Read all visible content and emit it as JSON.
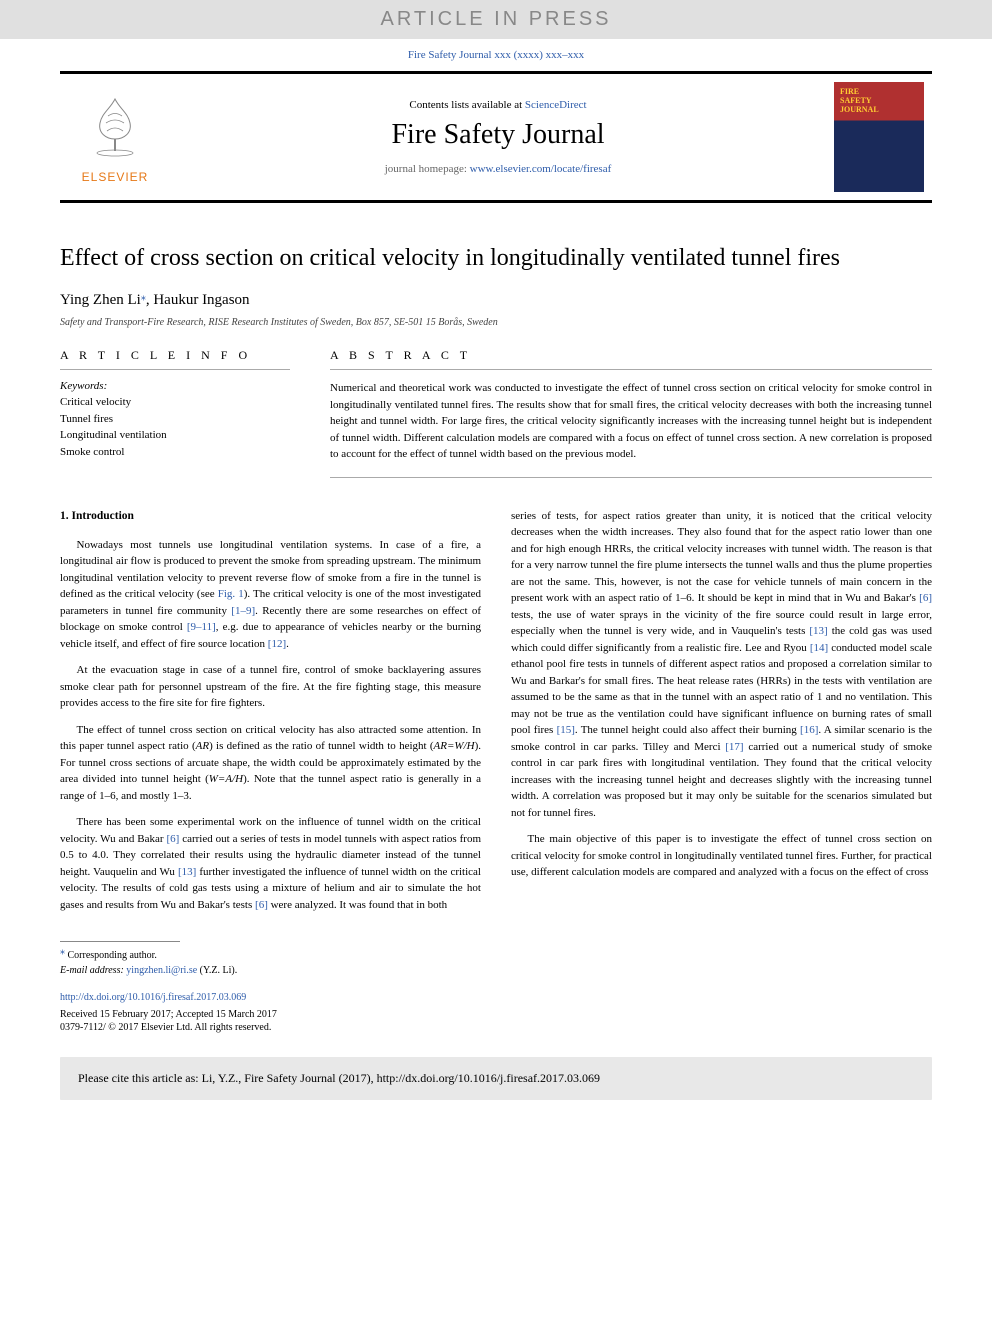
{
  "banner": {
    "text": "ARTICLE IN PRESS"
  },
  "journal_ref": "Fire Safety Journal xxx (xxxx) xxx–xxx",
  "header": {
    "contents_prefix": "Contents lists available at ",
    "contents_link": "ScienceDirect",
    "journal_title": "Fire Safety Journal",
    "homepage_prefix": "journal homepage: ",
    "homepage_link": "www.elsevier.com/locate/firesaf",
    "elsevier_label": "ELSEVIER",
    "cover_label": "FIRE\nSAFETY\nJOURNAL"
  },
  "article": {
    "title": "Effect of cross section on critical velocity in longitudinally ventilated tunnel fires",
    "authors_html": "Ying Zhen Li",
    "corr_symbol": "⁎",
    "authors_rest": ", Haukur Ingason",
    "affiliation": "Safety and Transport-Fire Research, RISE Research Institutes of Sweden, Box 857, SE-501 15 Borås, Sweden"
  },
  "info": {
    "header": "A R T I C L E  I N F O",
    "keywords_label": "Keywords:",
    "keywords": [
      "Critical velocity",
      "Tunnel fires",
      "Longitudinal ventilation",
      "Smoke control"
    ]
  },
  "abstract": {
    "header": "A B S T R A C T",
    "text": "Numerical and theoretical work was conducted to investigate the effect of tunnel cross section on critical velocity for smoke control in longitudinally ventilated tunnel fires. The results show that for small fires, the critical velocity decreases with both the increasing tunnel height and tunnel width. For large fires, the critical velocity significantly increases with the increasing tunnel height but is independent of tunnel width. Different calculation models are compared with a focus on effect of tunnel cross section. A new correlation is proposed to account for the effect of tunnel width based on the previous model."
  },
  "body": {
    "section_heading": "1. Introduction",
    "left_paras": [
      "Nowadays most tunnels use longitudinal ventilation systems. In case of a fire, a longitudinal air flow is produced to prevent the smoke from spreading upstream. The minimum longitudinal ventilation velocity to prevent reverse flow of smoke from a fire in the tunnel is defined as the critical velocity (see <span class=\"fig-link\">Fig. 1</span>). The critical velocity is one of the most investigated parameters in tunnel fire community <span class=\"ref-link\">[1–9]</span>. Recently there are some researches on effect of blockage on smoke control <span class=\"ref-link\">[9–11]</span>, e.g. due to appearance of vehicles nearby or the burning vehicle itself, and effect of fire source location <span class=\"ref-link\">[12]</span>.",
      "At the evacuation stage in case of a tunnel fire, control of smoke backlayering assures smoke clear path for personnel upstream of the fire. At the fire fighting stage, this measure provides access to the fire site for fire fighters.",
      "The effect of tunnel cross section on critical velocity has also attracted some attention. In this paper tunnel aspect ratio (<span class=\"italic\">AR</span>) is defined as the ratio of tunnel width to height (<span class=\"italic\">AR=W/H</span>). For tunnel cross sections of arcuate shape, the width could be approximately estimated by the area divided into tunnel height (<span class=\"italic\">W=A/H</span>). Note that the tunnel aspect ratio is generally in a range of 1–6, and mostly 1–3.",
      "There has been some experimental work on the influence of tunnel width on the critical velocity. Wu and Bakar <span class=\"ref-link\">[6]</span> carried out a series of tests in model tunnels with aspect ratios from 0.5 to 4.0. They correlated their results using the hydraulic diameter instead of the tunnel height. Vauquelin and Wu <span class=\"ref-link\">[13]</span> further investigated the influence of tunnel width on the critical velocity. The results of cold gas tests using a mixture of helium and air to simulate the hot gases and results from Wu and Bakar's tests <span class=\"ref-link\">[6]</span> were analyzed. It was found that in both"
    ],
    "right_paras": [
      "series of tests, for aspect ratios greater than unity, it is noticed that the critical velocity decreases when the width increases. They also found that for the aspect ratio lower than one and for high enough HRRs, the critical velocity increases with tunnel width. The reason is that for a very narrow tunnel the fire plume intersects the tunnel walls and thus the plume properties are not the same. This, however, is not the case for vehicle tunnels of main concern in the present work with an aspect ratio of 1–6. It should be kept in mind that in Wu and Bakar's <span class=\"ref-link\">[6]</span> tests, the use of water sprays in the vicinity of the fire source could result in large error, especially when the tunnel is very wide, and in Vauquelin's tests <span class=\"ref-link\">[13]</span> the cold gas was used which could differ significantly from a realistic fire. Lee and Ryou <span class=\"ref-link\">[14]</span> conducted model scale ethanol pool fire tests in tunnels of different aspect ratios and proposed a correlation similar to Wu and Barkar's for small fires. The heat release rates (HRRs) in the tests with ventilation are assumed to be the same as that in the tunnel with an aspect ratio of 1 and no ventilation. This may not be true as the ventilation could have significant influence on burning rates of small pool fires <span class=\"ref-link\">[15]</span>. The tunnel height could also affect their burning <span class=\"ref-link\">[16]</span>. A similar scenario is the smoke control in car parks. Tilley and Merci <span class=\"ref-link\">[17]</span> carried out a numerical study of smoke control in car park fires with longitudinal ventilation. They found that the critical velocity increases with the increasing tunnel height and decreases slightly with the increasing tunnel width. A correlation was proposed but it may only be suitable for the scenarios simulated but not for tunnel fires.",
      "The main objective of this paper is to investigate the effect of tunnel cross section on critical velocity for smoke control in longitudinally ventilated tunnel fires. Further, for practical use, different calculation models are compared and analyzed with a focus on the effect of cross"
    ]
  },
  "footnotes": {
    "corr_label": "⁎ Corresponding author.",
    "email_label": "E-mail address: ",
    "email": "yingzhen.li@ri.se",
    "email_suffix": " (Y.Z. Li)."
  },
  "doi": {
    "link": "http://dx.doi.org/10.1016/j.firesaf.2017.03.069",
    "received": "Received 15 February 2017; Accepted 15 March 2017",
    "copyright": "0379-7112/ © 2017 Elsevier Ltd. All rights reserved."
  },
  "cite_box": "Please cite this article as: Li, Y.Z., Fire Safety Journal (2017), http://dx.doi.org/10.1016/j.firesaf.2017.03.069",
  "colors": {
    "link": "#2e5caa",
    "elsevier_orange": "#e67817",
    "banner_bg": "#e0e0e0",
    "banner_text": "#888888"
  }
}
